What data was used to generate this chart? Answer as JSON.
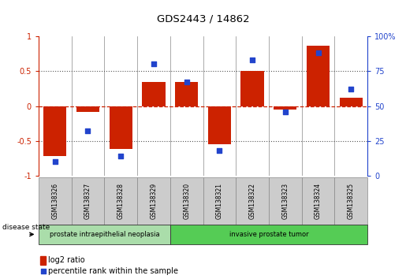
{
  "title": "GDS2443 / 14862",
  "samples": [
    "GSM138326",
    "GSM138327",
    "GSM138328",
    "GSM138329",
    "GSM138320",
    "GSM138321",
    "GSM138322",
    "GSM138323",
    "GSM138324",
    "GSM138325"
  ],
  "log2_ratio": [
    -0.72,
    -0.08,
    -0.62,
    0.35,
    0.35,
    -0.55,
    0.5,
    -0.05,
    0.87,
    0.12
  ],
  "percentile_rank": [
    10,
    32,
    14,
    80,
    67,
    18,
    83,
    46,
    88,
    62
  ],
  "groups": [
    {
      "label": "prostate intraepithelial neoplasia",
      "start": 0,
      "end": 4
    },
    {
      "label": "invasive prostate tumor",
      "start": 4,
      "end": 10
    }
  ],
  "ylim_left": [
    -1,
    1
  ],
  "ylim_right": [
    0,
    100
  ],
  "yticks_left": [
    -1,
    -0.5,
    0,
    0.5,
    1
  ],
  "yticks_right": [
    0,
    25,
    50,
    75,
    100
  ],
  "bar_color": "#cc2200",
  "dot_color": "#2244cc",
  "hline_color": "#cc2200",
  "dotted_color": "#555555",
  "disease_state_label": "disease state",
  "legend_bar_label": "log2 ratio",
  "legend_dot_label": "percentile rank within the sample",
  "sample_bg_color": "#cccccc",
  "group1_color": "#aaddaa",
  "group2_color": "#55cc55",
  "sep_color": "#888888",
  "border_color": "#333333"
}
